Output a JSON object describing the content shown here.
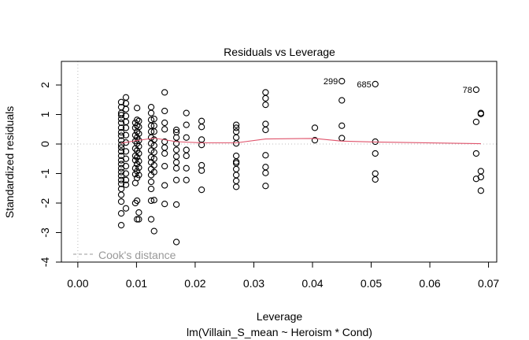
{
  "chart_data": {
    "type": "scatter",
    "title": "Residuals vs Leverage",
    "xlabel": "Leverage",
    "subtitle": "lm(Villain_S_mean ~ Heroism * Cond)",
    "ylabel": "Standardized residuals",
    "xlim": [
      -0.0028,
      0.0714
    ],
    "ylim": [
      -4,
      2.8
    ],
    "x_ticks": [
      0.0,
      0.01,
      0.02,
      0.03,
      0.04,
      0.05,
      0.06,
      0.07
    ],
    "x_tick_labels": [
      "0.00",
      "0.01",
      "0.02",
      "0.03",
      "0.04",
      "0.05",
      "0.06",
      "0.07"
    ],
    "y_ticks": [
      -4,
      -3,
      -2,
      -1,
      0,
      1,
      2
    ],
    "y_tick_labels": [
      "-4",
      "-3",
      "-2",
      "-1",
      "0",
      "1",
      "2"
    ],
    "reference_lines": {
      "horizontal_dotted_at": 0,
      "vertical_dotted_at": 0
    },
    "legend": {
      "position": "bottom-left",
      "entries": [
        {
          "label": "Cook's distance",
          "style": "dashed",
          "color": "#999999"
        }
      ]
    },
    "smooth_color": "#DF536B",
    "smooth_line": {
      "x": [
        0.0074,
        0.0101,
        0.013,
        0.0168,
        0.0211,
        0.027,
        0.032,
        0.0404,
        0.045,
        0.0507,
        0.0687
      ],
      "y": [
        0.03,
        0.12,
        0.2,
        0.08,
        0.04,
        0.04,
        0.17,
        0.19,
        0.1,
        0.07,
        0.01
      ]
    },
    "labeled_points": [
      {
        "label": "299",
        "x": 0.045,
        "y": 2.13
      },
      {
        "label": "685",
        "x": 0.0507,
        "y": 2.03
      },
      {
        "label": "78",
        "x": 0.0679,
        "y": 1.84
      }
    ],
    "series": [
      {
        "name": "residuals",
        "points": [
          [
            0.0074,
            1.42
          ],
          [
            0.0074,
            1.25
          ],
          [
            0.0074,
            1.05
          ],
          [
            0.0074,
            0.98
          ],
          [
            0.0074,
            0.85
          ],
          [
            0.0074,
            0.72
          ],
          [
            0.0074,
            0.55
          ],
          [
            0.0074,
            0.4
          ],
          [
            0.0074,
            0.28
          ],
          [
            0.0074,
            0.12
          ],
          [
            0.0074,
            -0.02
          ],
          [
            0.0074,
            -0.12
          ],
          [
            0.0074,
            -0.25
          ],
          [
            0.0074,
            -0.4
          ],
          [
            0.0074,
            -0.55
          ],
          [
            0.0074,
            -0.68
          ],
          [
            0.0074,
            -0.82
          ],
          [
            0.0074,
            -0.95
          ],
          [
            0.0074,
            -1.08
          ],
          [
            0.0074,
            -1.22
          ],
          [
            0.0074,
            -1.35
          ],
          [
            0.0074,
            -1.52
          ],
          [
            0.0074,
            -1.72
          ],
          [
            0.0074,
            -1.95
          ],
          [
            0.0074,
            -2.35
          ],
          [
            0.0074,
            -2.75
          ],
          [
            0.0082,
            1.58
          ],
          [
            0.0082,
            1.38
          ],
          [
            0.0082,
            1.18
          ],
          [
            0.0082,
            0.95
          ],
          [
            0.0082,
            0.75
          ],
          [
            0.0082,
            0.55
          ],
          [
            0.0082,
            0.3
          ],
          [
            0.0082,
            0.05
          ],
          [
            0.0082,
            -0.25
          ],
          [
            0.0082,
            -0.5
          ],
          [
            0.0082,
            -0.75
          ],
          [
            0.0082,
            -1.0
          ],
          [
            0.0082,
            -1.22
          ],
          [
            0.0082,
            -1.38
          ],
          [
            0.0082,
            -2.18
          ],
          [
            0.0098,
            0.72
          ],
          [
            0.0098,
            0.55
          ],
          [
            0.0098,
            0.3
          ],
          [
            0.0098,
            0.1
          ],
          [
            0.0098,
            -0.15
          ],
          [
            0.0098,
            -0.4
          ],
          [
            0.0098,
            -0.55
          ],
          [
            0.0098,
            -0.82
          ],
          [
            0.0098,
            -1.02
          ],
          [
            0.0098,
            -1.32
          ],
          [
            0.0098,
            -2.0
          ],
          [
            0.0101,
            1.22
          ],
          [
            0.0101,
            0.82
          ],
          [
            0.0101,
            0.62
          ],
          [
            0.0101,
            0.42
          ],
          [
            0.0101,
            0.22
          ],
          [
            0.0101,
            0.02
          ],
          [
            0.0101,
            -0.22
          ],
          [
            0.0101,
            -0.45
          ],
          [
            0.0101,
            -0.68
          ],
          [
            0.0101,
            -0.92
          ],
          [
            0.0101,
            -1.15
          ],
          [
            0.0101,
            -1.92
          ],
          [
            0.0101,
            -2.55
          ],
          [
            0.0104,
            0.78
          ],
          [
            0.0104,
            0.58
          ],
          [
            0.0104,
            0.35
          ],
          [
            0.0104,
            0.12
          ],
          [
            0.0104,
            -0.08
          ],
          [
            0.0104,
            -0.32
          ],
          [
            0.0104,
            -0.58
          ],
          [
            0.0104,
            -0.8
          ],
          [
            0.0104,
            -1.05
          ],
          [
            0.0104,
            -2.32
          ],
          [
            0.0104,
            -2.55
          ],
          [
            0.0125,
            1.25
          ],
          [
            0.0125,
            1.05
          ],
          [
            0.0125,
            0.82
          ],
          [
            0.0125,
            0.62
          ],
          [
            0.0125,
            0.42
          ],
          [
            0.0125,
            0.22
          ],
          [
            0.0125,
            0.02
          ],
          [
            0.0125,
            -0.22
          ],
          [
            0.0125,
            -0.45
          ],
          [
            0.0125,
            -0.62
          ],
          [
            0.0125,
            -0.85
          ],
          [
            0.0125,
            -1.05
          ],
          [
            0.0125,
            -1.28
          ],
          [
            0.0125,
            -1.52
          ],
          [
            0.0125,
            -1.92
          ],
          [
            0.0125,
            -2.55
          ],
          [
            0.013,
            0.85
          ],
          [
            0.013,
            0.62
          ],
          [
            0.013,
            0.42
          ],
          [
            0.013,
            0.15
          ],
          [
            0.013,
            -0.05
          ],
          [
            0.013,
            -0.28
          ],
          [
            0.013,
            -0.5
          ],
          [
            0.013,
            -0.72
          ],
          [
            0.013,
            -0.95
          ],
          [
            0.013,
            -1.9
          ],
          [
            0.013,
            -2.95
          ],
          [
            0.0148,
            1.75
          ],
          [
            0.0148,
            1.12
          ],
          [
            0.0148,
            0.72
          ],
          [
            0.0148,
            0.5
          ],
          [
            0.0148,
            0.08
          ],
          [
            0.0148,
            -0.12
          ],
          [
            0.0148,
            -0.32
          ],
          [
            0.0148,
            -0.75
          ],
          [
            0.0148,
            -1.4
          ],
          [
            0.0148,
            -2.03
          ],
          [
            0.0168,
            0.48
          ],
          [
            0.0168,
            0.4
          ],
          [
            0.0168,
            0.22
          ],
          [
            0.0168,
            0.02
          ],
          [
            0.0168,
            -0.2
          ],
          [
            0.0168,
            -0.42
          ],
          [
            0.0168,
            -0.62
          ],
          [
            0.0168,
            -0.82
          ],
          [
            0.0168,
            -1.22
          ],
          [
            0.0168,
            -2.05
          ],
          [
            0.0168,
            -3.32
          ],
          [
            0.0185,
            1.05
          ],
          [
            0.0185,
            0.65
          ],
          [
            0.0185,
            0.22
          ],
          [
            0.0185,
            -0.2
          ],
          [
            0.0185,
            -0.4
          ],
          [
            0.0185,
            -0.82
          ],
          [
            0.0185,
            -1.22
          ],
          [
            0.0211,
            0.78
          ],
          [
            0.0211,
            0.58
          ],
          [
            0.0211,
            0.15
          ],
          [
            0.0211,
            -0.03
          ],
          [
            0.0211,
            -0.72
          ],
          [
            0.0211,
            -0.9
          ],
          [
            0.0211,
            -1.55
          ],
          [
            0.027,
            0.65
          ],
          [
            0.027,
            0.55
          ],
          [
            0.027,
            0.42
          ],
          [
            0.027,
            0.22
          ],
          [
            0.027,
            0.02
          ],
          [
            0.027,
            -0.4
          ],
          [
            0.027,
            -0.6
          ],
          [
            0.027,
            -0.65
          ],
          [
            0.027,
            -0.85
          ],
          [
            0.027,
            -1.05
          ],
          [
            0.027,
            -1.25
          ],
          [
            0.027,
            -1.45
          ],
          [
            0.032,
            1.75
          ],
          [
            0.032,
            1.55
          ],
          [
            0.032,
            1.33
          ],
          [
            0.032,
            0.68
          ],
          [
            0.032,
            0.48
          ],
          [
            0.032,
            -0.38
          ],
          [
            0.032,
            -0.78
          ],
          [
            0.032,
            -0.98
          ],
          [
            0.032,
            -1.42
          ],
          [
            0.0404,
            0.55
          ],
          [
            0.0404,
            0.13
          ],
          [
            0.045,
            2.13
          ],
          [
            0.045,
            1.48
          ],
          [
            0.045,
            0.62
          ],
          [
            0.045,
            0.2
          ],
          [
            0.0507,
            2.03
          ],
          [
            0.0507,
            0.08
          ],
          [
            0.0507,
            -0.32
          ],
          [
            0.0507,
            -1.0
          ],
          [
            0.0507,
            -1.2
          ],
          [
            0.0679,
            1.84
          ],
          [
            0.0679,
            0.75
          ],
          [
            0.0679,
            -0.32
          ],
          [
            0.0679,
            -1.18
          ],
          [
            0.0687,
            1.05
          ],
          [
            0.0687,
            1.02
          ],
          [
            0.0687,
            -0.92
          ],
          [
            0.0687,
            -1.12
          ],
          [
            0.0687,
            -1.58
          ]
        ]
      }
    ]
  }
}
